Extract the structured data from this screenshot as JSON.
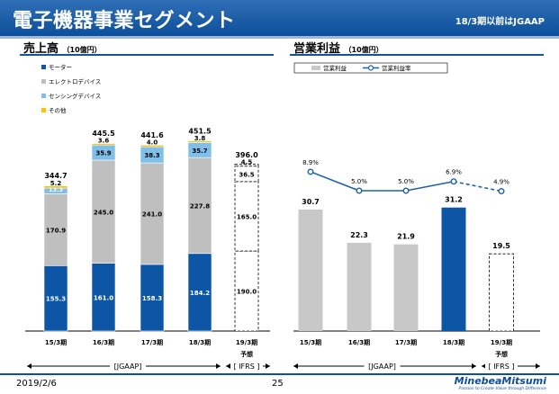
{
  "header": {
    "title": "電子機器事業セグメント",
    "note": "18/3期以前はJGAAP"
  },
  "left": {
    "title": "売上高",
    "unit": "（10億円）"
  },
  "right": {
    "title": "営業利益",
    "unit": "（10億円）"
  },
  "footer": {
    "date": "2019/2/6",
    "page": "25",
    "brand": "MinebeaMitsumi",
    "tagline": "Passion to Create Value through Difference"
  },
  "colors": {
    "motor": "#0d56a6",
    "electro": "#bfbfbf",
    "sensing": "#7fbfe9",
    "other": "#ffc000",
    "profit_bar": "#c8c8c8",
    "profit_bar_highlight": "#0d56a6",
    "margin_line": "#1f62a6"
  },
  "chart_data": [
    {
      "type": "bar",
      "stacked": true,
      "title": "売上高",
      "categories": [
        "15/3期",
        "16/3期",
        "17/3期",
        "18/3期",
        "19/3期"
      ],
      "forecast_label": "予想",
      "legend": [
        "モーター",
        "エレクトロデバイス",
        "センシングデバイス",
        "その他"
      ],
      "series": [
        {
          "name": "モーター",
          "values": [
            155.3,
            161.0,
            158.3,
            184.2,
            190.0
          ],
          "labels": [
            "155.3",
            "161.0",
            "158.3",
            "184.2",
            "190.0"
          ]
        },
        {
          "name": "エレクトロデバイス",
          "values": [
            170.9,
            245.0,
            241.0,
            227.8,
            165.0
          ],
          "labels": [
            "170.9",
            "245.0",
            "241.0",
            "227.8",
            "165.0"
          ]
        },
        {
          "name": "センシングデバイス",
          "values": [
            13.3,
            35.9,
            38.3,
            35.7,
            36.5
          ],
          "labels": [
            "13.3",
            "35.9",
            "38.3",
            "35.7",
            "36.5"
          ]
        },
        {
          "name": "その他",
          "values": [
            5.2,
            3.6,
            4.0,
            3.8,
            4.5
          ],
          "labels": [
            "5.2",
            "3.6",
            "4.0",
            "3.8",
            "4.5"
          ]
        }
      ],
      "totals": [
        "344.7",
        "445.5",
        "441.6",
        "451.5",
        "396.0"
      ],
      "ylim": [
        0,
        460
      ],
      "periods": [
        {
          "label": "[JGAAP]",
          "categories": [
            0,
            3
          ]
        },
        {
          "label": "[ IFRS ]",
          "categories": [
            4,
            4
          ]
        }
      ]
    },
    {
      "type": "bar",
      "title": "営業利益",
      "categories": [
        "15/3期",
        "16/3期",
        "17/3期",
        "18/3期",
        "19/3期"
      ],
      "forecast_label": "予想",
      "legend": [
        "営業利益",
        "営業利益率"
      ],
      "series": [
        {
          "name": "営業利益",
          "values": [
            30.7,
            22.3,
            21.9,
            31.2,
            19.5
          ],
          "labels": [
            "30.7",
            "22.3",
            "21.9",
            "31.2",
            "19.5"
          ]
        }
      ],
      "line_series": {
        "name": "営業利益率",
        "values": [
          8.9,
          5.0,
          5.0,
          6.9,
          4.9
        ],
        "labels": [
          "8.9%",
          "5.0%",
          "5.0%",
          "6.9%",
          "4.9%"
        ]
      },
      "periods": [
        {
          "label": "[JGAAP]",
          "categories": [
            0,
            3
          ]
        },
        {
          "label": "[ IFRS ]",
          "categories": [
            4,
            4
          ]
        }
      ]
    }
  ]
}
